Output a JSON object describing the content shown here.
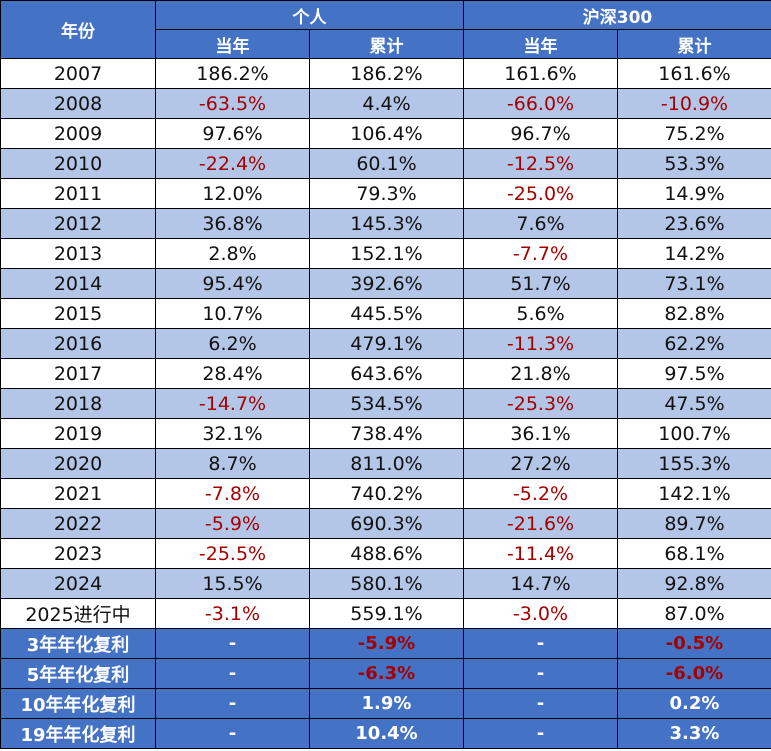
{
  "header": {
    "year": "年份",
    "personal": "个人",
    "index": "沪深300",
    "annual": "当年",
    "cumulative": "累计"
  },
  "rows": [
    {
      "year": "2007",
      "p_annual": "186.2%",
      "p_cum": "186.2%",
      "i_annual": "161.6%",
      "i_cum": "161.6%"
    },
    {
      "year": "2008",
      "p_annual": "-63.5%",
      "p_cum": "4.4%",
      "i_annual": "-66.0%",
      "i_cum": "-10.9%"
    },
    {
      "year": "2009",
      "p_annual": "97.6%",
      "p_cum": "106.4%",
      "i_annual": "96.7%",
      "i_cum": "75.2%"
    },
    {
      "year": "2010",
      "p_annual": "-22.4%",
      "p_cum": "60.1%",
      "i_annual": "-12.5%",
      "i_cum": "53.3%"
    },
    {
      "year": "2011",
      "p_annual": "12.0%",
      "p_cum": "79.3%",
      "i_annual": "-25.0%",
      "i_cum": "14.9%"
    },
    {
      "year": "2012",
      "p_annual": "36.8%",
      "p_cum": "145.3%",
      "i_annual": "7.6%",
      "i_cum": "23.6%"
    },
    {
      "year": "2013",
      "p_annual": "2.8%",
      "p_cum": "152.1%",
      "i_annual": "-7.7%",
      "i_cum": "14.2%"
    },
    {
      "year": "2014",
      "p_annual": "95.4%",
      "p_cum": "392.6%",
      "i_annual": "51.7%",
      "i_cum": "73.1%"
    },
    {
      "year": "2015",
      "p_annual": "10.7%",
      "p_cum": "445.5%",
      "i_annual": "5.6%",
      "i_cum": "82.8%"
    },
    {
      "year": "2016",
      "p_annual": "6.2%",
      "p_cum": "479.1%",
      "i_annual": "-11.3%",
      "i_cum": "62.2%"
    },
    {
      "year": "2017",
      "p_annual": "28.4%",
      "p_cum": "643.6%",
      "i_annual": "21.8%",
      "i_cum": "97.5%"
    },
    {
      "year": "2018",
      "p_annual": "-14.7%",
      "p_cum": "534.5%",
      "i_annual": "-25.3%",
      "i_cum": "47.5%"
    },
    {
      "year": "2019",
      "p_annual": "32.1%",
      "p_cum": "738.4%",
      "i_annual": "36.1%",
      "i_cum": "100.7%"
    },
    {
      "year": "2020",
      "p_annual": "8.7%",
      "p_cum": "811.0%",
      "i_annual": "27.2%",
      "i_cum": "155.3%"
    },
    {
      "year": "2021",
      "p_annual": "-7.8%",
      "p_cum": "740.2%",
      "i_annual": "-5.2%",
      "i_cum": "142.1%"
    },
    {
      "year": "2022",
      "p_annual": "-5.9%",
      "p_cum": "690.3%",
      "i_annual": "-21.6%",
      "i_cum": "89.7%"
    },
    {
      "year": "2023",
      "p_annual": "-25.5%",
      "p_cum": "488.6%",
      "i_annual": "-11.4%",
      "i_cum": "68.1%"
    },
    {
      "year": "2024",
      "p_annual": "15.5%",
      "p_cum": "580.1%",
      "i_annual": "14.7%",
      "i_cum": "92.8%"
    },
    {
      "year": "2025进行中",
      "p_annual": "-3.1%",
      "p_cum": "559.1%",
      "i_annual": "-3.0%",
      "i_cum": "87.0%"
    }
  ],
  "summary": [
    {
      "label": "3年年化复利",
      "p_annual": "-",
      "p_cum": "-5.9%",
      "i_annual": "-",
      "i_cum": "-0.5%"
    },
    {
      "label": "5年年化复利",
      "p_annual": "-",
      "p_cum": "-6.3%",
      "i_annual": "-",
      "i_cum": "-6.0%"
    },
    {
      "label": "10年年化复利",
      "p_annual": "-",
      "p_cum": "1.9%",
      "i_annual": "-",
      "i_cum": "0.2%"
    },
    {
      "label": "19年年化复利",
      "p_annual": "-",
      "p_cum": "10.4%",
      "i_annual": "-",
      "i_cum": "3.3%"
    }
  ],
  "colors": {
    "header_bg": "#4472c4",
    "band_bg": "#b4c6e7",
    "negative_text": "#a50000",
    "header_text": "#ffffff"
  }
}
